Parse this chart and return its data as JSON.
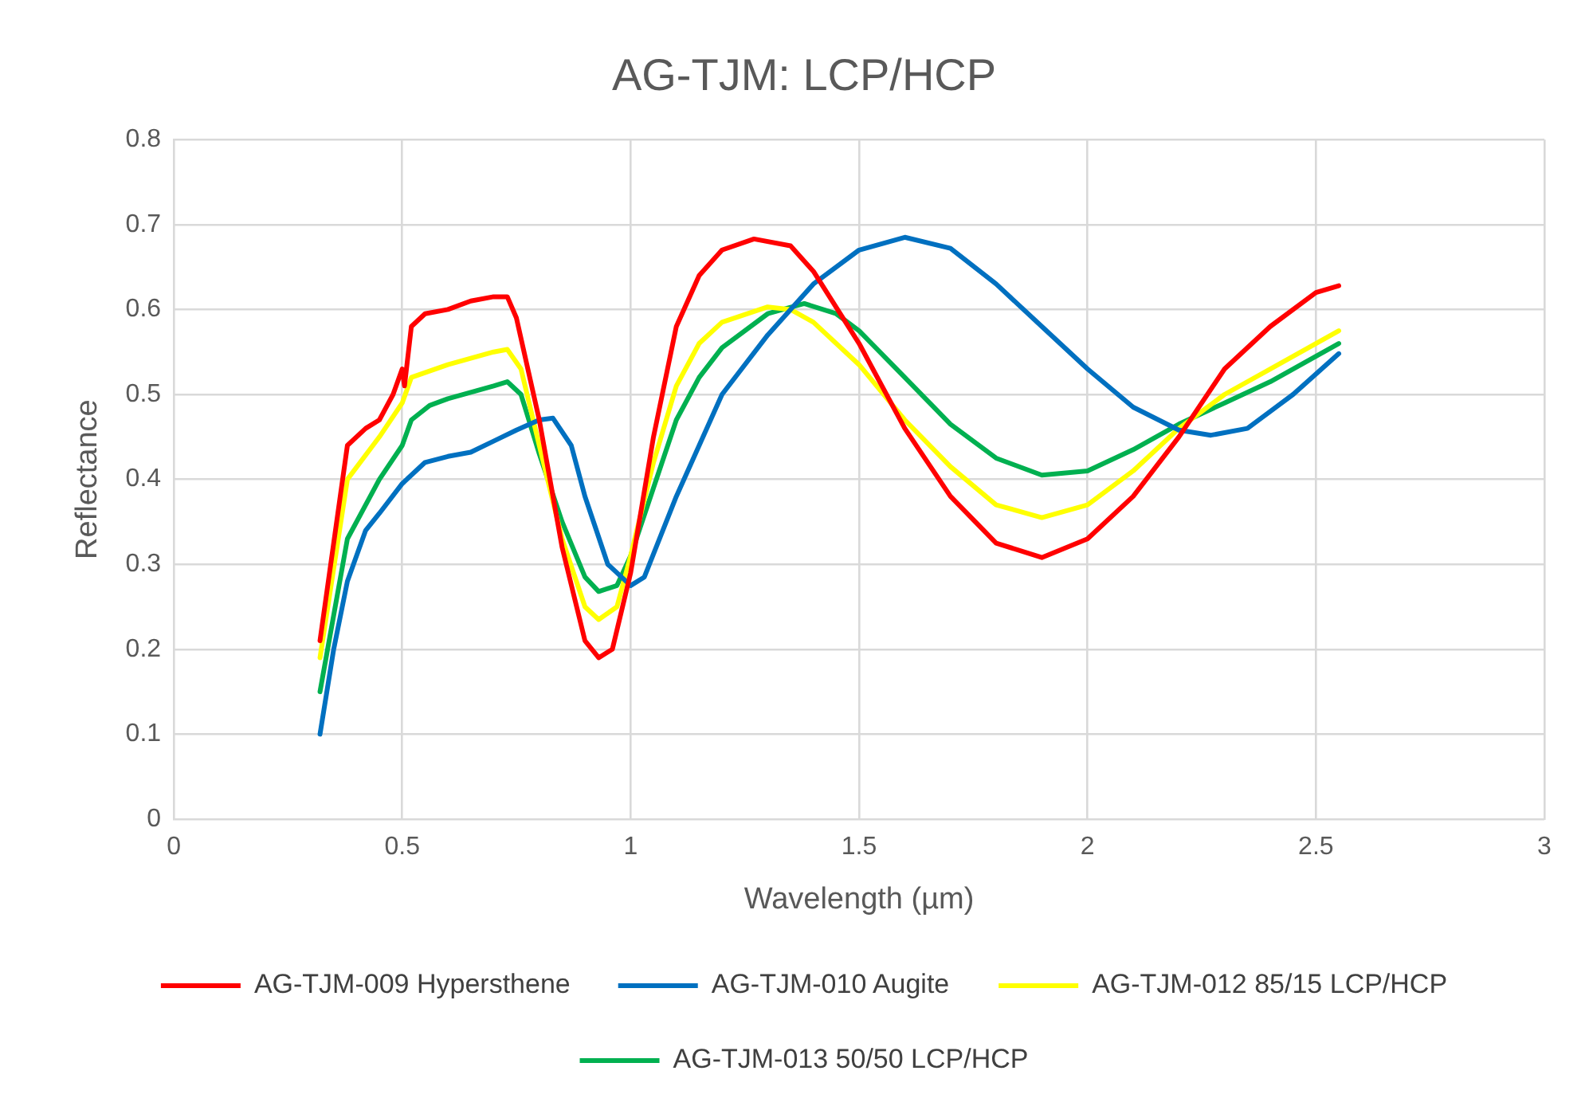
{
  "chart_data": {
    "type": "line",
    "title": "AG-TJM: LCP/HCP",
    "xlabel": "Wavelength (µm)",
    "ylabel": "Reflectance",
    "xlim": [
      0,
      3
    ],
    "xticks": [
      0,
      0.5,
      1,
      1.5,
      2,
      2.5,
      3
    ],
    "ylim": [
      0,
      0.8
    ],
    "yticks": [
      0,
      0.1,
      0.2,
      0.3,
      0.4,
      0.5,
      0.6,
      0.7,
      0.8
    ],
    "grid": true,
    "legend": "bottom",
    "marker": "none",
    "line_style": "solid",
    "series": [
      {
        "name": "AG-TJM-009 Hypersthene",
        "color": "#ff0000",
        "x": [
          0.32,
          0.38,
          0.42,
          0.45,
          0.48,
          0.5,
          0.505,
          0.52,
          0.55,
          0.6,
          0.65,
          0.7,
          0.73,
          0.75,
          0.8,
          0.85,
          0.9,
          0.93,
          0.96,
          1.0,
          1.05,
          1.1,
          1.15,
          1.2,
          1.27,
          1.35,
          1.4,
          1.5,
          1.6,
          1.7,
          1.8,
          1.9,
          2.0,
          2.1,
          2.2,
          2.3,
          2.4,
          2.5,
          2.55
        ],
        "values": [
          0.21,
          0.44,
          0.46,
          0.47,
          0.5,
          0.53,
          0.51,
          0.58,
          0.595,
          0.6,
          0.61,
          0.615,
          0.615,
          0.59,
          0.47,
          0.32,
          0.21,
          0.19,
          0.2,
          0.29,
          0.45,
          0.58,
          0.64,
          0.67,
          0.683,
          0.675,
          0.645,
          0.56,
          0.46,
          0.38,
          0.325,
          0.308,
          0.33,
          0.38,
          0.45,
          0.53,
          0.58,
          0.62,
          0.628
        ]
      },
      {
        "name": "AG-TJM-010 Augite",
        "color": "#0070c0",
        "x": [
          0.32,
          0.35,
          0.38,
          0.42,
          0.45,
          0.5,
          0.55,
          0.6,
          0.65,
          0.7,
          0.75,
          0.8,
          0.83,
          0.87,
          0.9,
          0.95,
          1.0,
          1.03,
          1.1,
          1.2,
          1.3,
          1.4,
          1.5,
          1.6,
          1.7,
          1.8,
          1.9,
          2.0,
          2.1,
          2.2,
          2.27,
          2.35,
          2.45,
          2.55
        ],
        "values": [
          0.1,
          0.2,
          0.28,
          0.34,
          0.36,
          0.395,
          0.42,
          0.427,
          0.432,
          0.445,
          0.458,
          0.47,
          0.472,
          0.44,
          0.38,
          0.3,
          0.275,
          0.285,
          0.38,
          0.5,
          0.57,
          0.63,
          0.67,
          0.685,
          0.672,
          0.63,
          0.58,
          0.53,
          0.485,
          0.458,
          0.452,
          0.46,
          0.5,
          0.548
        ]
      },
      {
        "name": "AG-TJM-012 85/15 LCP/HCP",
        "color": "#ffff00",
        "x": [
          0.32,
          0.38,
          0.45,
          0.5,
          0.52,
          0.6,
          0.7,
          0.73,
          0.76,
          0.8,
          0.85,
          0.9,
          0.93,
          0.97,
          1.0,
          1.05,
          1.1,
          1.15,
          1.2,
          1.3,
          1.35,
          1.4,
          1.5,
          1.6,
          1.7,
          1.8,
          1.9,
          2.0,
          2.1,
          2.2,
          2.3,
          2.4,
          2.5,
          2.55
        ],
        "values": [
          0.19,
          0.4,
          0.45,
          0.49,
          0.52,
          0.535,
          0.55,
          0.553,
          0.53,
          0.44,
          0.33,
          0.25,
          0.235,
          0.25,
          0.31,
          0.42,
          0.51,
          0.56,
          0.585,
          0.603,
          0.6,
          0.585,
          0.535,
          0.47,
          0.415,
          0.37,
          0.355,
          0.37,
          0.41,
          0.46,
          0.5,
          0.53,
          0.56,
          0.575
        ]
      },
      {
        "name": "AG-TJM-013 50/50 LCP/HCP",
        "color": "#00b050",
        "x": [
          0.32,
          0.38,
          0.45,
          0.5,
          0.52,
          0.56,
          0.6,
          0.7,
          0.73,
          0.76,
          0.8,
          0.85,
          0.9,
          0.93,
          0.97,
          1.0,
          1.05,
          1.1,
          1.15,
          1.2,
          1.3,
          1.38,
          1.45,
          1.5,
          1.6,
          1.7,
          1.8,
          1.9,
          2.0,
          2.1,
          2.2,
          2.3,
          2.4,
          2.5,
          2.55
        ],
        "values": [
          0.15,
          0.33,
          0.4,
          0.44,
          0.47,
          0.487,
          0.495,
          0.51,
          0.515,
          0.5,
          0.43,
          0.35,
          0.285,
          0.268,
          0.275,
          0.31,
          0.39,
          0.47,
          0.52,
          0.555,
          0.595,
          0.607,
          0.595,
          0.575,
          0.52,
          0.465,
          0.425,
          0.405,
          0.41,
          0.435,
          0.465,
          0.49,
          0.515,
          0.545,
          0.56
        ]
      }
    ]
  }
}
